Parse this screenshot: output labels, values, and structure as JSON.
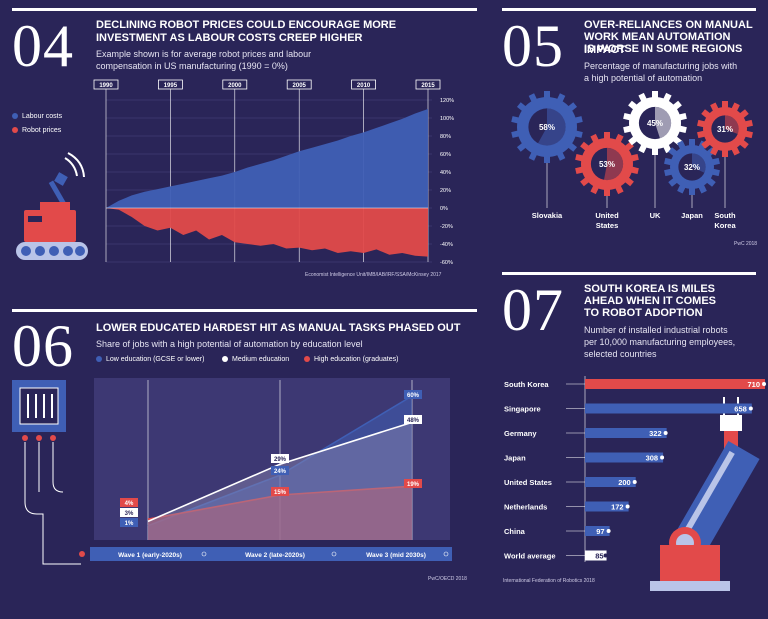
{
  "colors": {
    "bg": "#2a2558",
    "blue": "#3f5fb5",
    "red": "#e24a4a",
    "white": "#ffffff",
    "panel": "#3d3873"
  },
  "s04": {
    "num": "04",
    "title1": "DECLINING ROBOT PRICES COULD ENCOURAGE MORE",
    "title2": "INVESTMENT AS LABOUR COSTS CREEP HIGHER",
    "sub1": "Example shown is for average robot prices and labour",
    "sub2": "compensation in US manufacturing (1990 = 0%)",
    "legend_labour": "Labour costs",
    "legend_robot": "Robot prices",
    "source": "Economist Intelligence Unit/IMB/IAB/IRF/SSA/McKinsey 2017"
  },
  "s05": {
    "num": "05",
    "title1": "OVER-RELIANCES ON MANUAL",
    "title2": "WORK MEAN AUTOMATION IMPACT",
    "title3": "IS WORSE IN SOME REGIONS",
    "sub1": "Percentage of manufacturing jobs with",
    "sub2": "a high potential of automation",
    "source": "PwC 2018"
  },
  "s06": {
    "num": "06",
    "title": "LOWER EDUCATED HARDEST HIT AS MANUAL TASKS PHASED OUT",
    "sub": "Share of jobs with a high potential of automation by education level",
    "legend_low": "Low education (GCSE or lower)",
    "legend_med": "Medium education",
    "legend_high": "High education (graduates)",
    "source": "PwC/OECD 2018"
  },
  "s07": {
    "num": "07",
    "title1": "SOUTH KOREA IS MILES",
    "title2": "AHEAD WHEN IT COMES",
    "title3": "TO ROBOT ADOPTION",
    "sub1": "Number of installed industrial robots",
    "sub2": "per 10,000 manufacturing employees,",
    "sub3": "selected countries",
    "source": "International Federation of Robotics 2018"
  },
  "chart_data": [
    {
      "type": "area",
      "x": [
        1990,
        1991,
        1992,
        1993,
        1994,
        1995,
        1996,
        1997,
        1998,
        1999,
        2000,
        2001,
        2002,
        2003,
        2004,
        2005,
        2006,
        2007,
        2008,
        2009,
        2010,
        2011,
        2012,
        2013,
        2014,
        2015
      ],
      "x_ticks": [
        "1990",
        "1995",
        "2000",
        "2005",
        "2010",
        "2015"
      ],
      "y_ticks": [
        "120%",
        "100%",
        "80%",
        "60%",
        "40%",
        "20%",
        "0%",
        "-20%",
        "-40%",
        "-60%"
      ],
      "ylim": [
        -60,
        120
      ],
      "series": [
        {
          "name": "Labour costs",
          "color": "#3f5fb5",
          "values": [
            0,
            8,
            14,
            18,
            21,
            24,
            27,
            30,
            33,
            36,
            40,
            45,
            49,
            53,
            58,
            63,
            67,
            71,
            75,
            80,
            84,
            89,
            94,
            99,
            105,
            110
          ]
        },
        {
          "name": "Robot prices",
          "color": "#e24a4a",
          "values": [
            0,
            -2,
            -10,
            -20,
            -25,
            -22,
            -30,
            -25,
            -35,
            -30,
            -38,
            -40,
            -42,
            -40,
            -45,
            -44,
            -47,
            -45,
            -50,
            -48,
            -50,
            -46,
            -52,
            -50,
            -53,
            -54
          ]
        }
      ]
    },
    {
      "type": "pie",
      "categories": [
        "Slovakia",
        "United States",
        "UK",
        "Japan",
        "South Korea"
      ],
      "values": [
        58,
        53,
        45,
        32,
        31
      ],
      "labels": [
        "58%",
        "53%",
        "45%",
        "32%",
        "31%"
      ]
    },
    {
      "type": "area",
      "categories": [
        "Wave 1 (early-2020s)",
        "Wave 2 (late-2020s)",
        "Wave 3 (mid 2030s)"
      ],
      "series": [
        {
          "name": "Low education (GCSE or lower)",
          "color": "#3f5fb5",
          "values": [
            1,
            24,
            60
          ],
          "labels": [
            "1%",
            "24%",
            "60%"
          ]
        },
        {
          "name": "Medium education",
          "color": "#ffffff",
          "values": [
            3,
            29,
            48
          ],
          "labels": [
            "3%",
            "29%",
            "48%"
          ]
        },
        {
          "name": "High education (graduates)",
          "color": "#e24a4a",
          "values": [
            4,
            15,
            19
          ],
          "labels": [
            "4%",
            "15%",
            "19%"
          ]
        }
      ]
    },
    {
      "type": "bar",
      "categories": [
        "South Korea",
        "Singapore",
        "Germany",
        "Japan",
        "United States",
        "Netherlands",
        "China",
        "World average"
      ],
      "values": [
        710,
        658,
        322,
        308,
        200,
        172,
        97,
        85
      ]
    }
  ]
}
